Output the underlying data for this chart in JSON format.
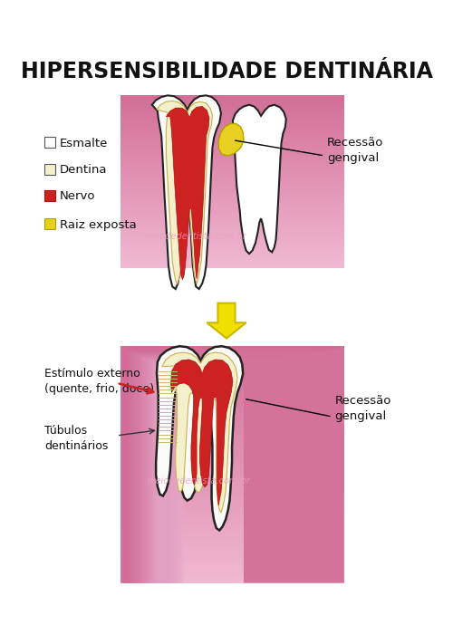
{
  "title": "HIPERSENSIBILIDADE DENTINÁRIA",
  "title_fontsize": 17,
  "bg_color": "#ffffff",
  "gum_pink_dark": "#cc6699",
  "gum_pink_light": "#f0c0d8",
  "enamel_color": "#fafaf8",
  "dentin_color": "#f5f0cc",
  "nerve_color": "#cc2222",
  "exposed_root_color": "#e8d020",
  "outline_color": "#222222",
  "legend_items": [
    {
      "label": "Esmalte",
      "color": "#ffffff",
      "edge": "#555555"
    },
    {
      "label": "Dentina",
      "color": "#f5f0cc",
      "edge": "#555555"
    },
    {
      "label": "Nervo",
      "color": "#cc2222",
      "edge": "#aa1111"
    },
    {
      "label": "Raiz exposta",
      "color": "#e8d020",
      "edge": "#aaa000"
    }
  ],
  "arrow_yellow": "#f0e000",
  "arrow_yellow_edge": "#c8b800",
  "label_recession_top": "Recessão\ngengival",
  "label_recession_bottom": "Recessão\ngengival",
  "label_stimulus": "Estímulo externo\n(quente, frio, doce)",
  "label_tubules": "Túbulos\ndentinários",
  "watermark": "meiodedentista.com.br",
  "tubule_color": "#c8b870"
}
